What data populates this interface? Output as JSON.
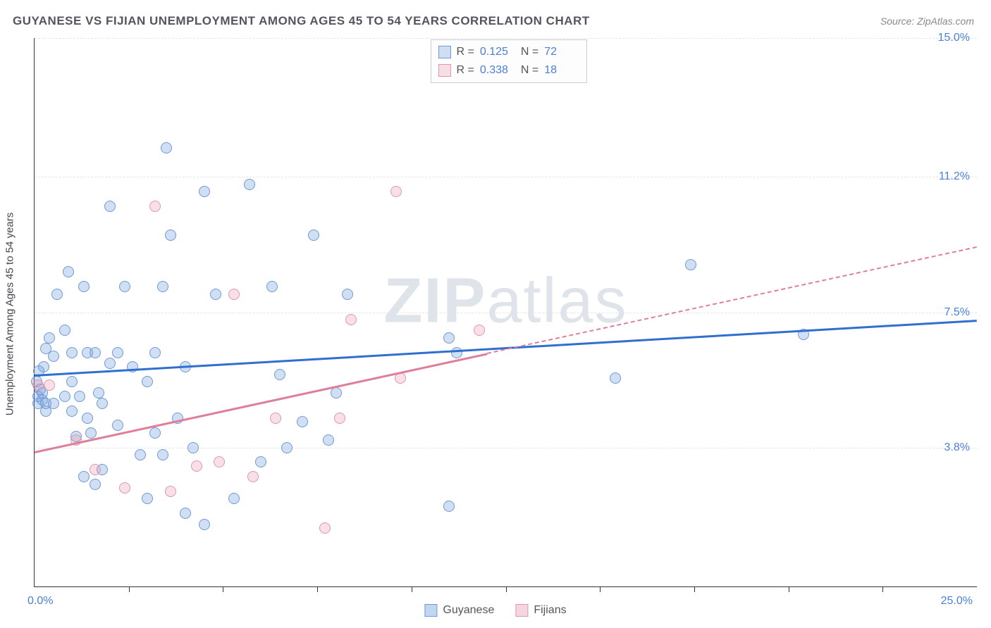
{
  "title": "GUYANESE VS FIJIAN UNEMPLOYMENT AMONG AGES 45 TO 54 YEARS CORRELATION CHART",
  "source_label": "Source: ZipAtlas.com",
  "yaxis_title": "Unemployment Among Ages 45 to 54 years",
  "watermark_bold": "ZIP",
  "watermark_rest": "atlas",
  "chart": {
    "type": "scatter",
    "background_color": "#ffffff",
    "grid_color": "#e6e6ea",
    "axis_color": "#333333",
    "label_color": "#4a7fd8",
    "title_color": "#555560",
    "title_fontsize": 17,
    "label_fontsize": 16,
    "yaxis_fontsize": 15,
    "xlim": [
      0,
      25
    ],
    "ylim": [
      0,
      15
    ],
    "x_min_label": "0.0%",
    "x_max_label": "25.0%",
    "y_gridlines": [
      3.8,
      7.5,
      11.2,
      15.0
    ],
    "y_grid_labels": [
      "3.8%",
      "7.5%",
      "11.2%",
      "15.0%"
    ],
    "x_ticks": [
      2.5,
      5,
      7.5,
      10,
      12.5,
      15,
      17.5,
      20,
      22.5
    ],
    "marker_size": 16,
    "line_width": 2.5
  },
  "series": [
    {
      "name": "Guyanese",
      "fill": "rgba(121,163,220,0.35)",
      "stroke": "#6e9ad6",
      "line_color": "#2f6fd0",
      "R": "0.125",
      "N": "72",
      "trend": {
        "x1": 0,
        "y1": 5.8,
        "x2": 25,
        "y2": 7.3,
        "solid_until_x": 25
      },
      "points": [
        [
          0.1,
          5.2
        ],
        [
          0.1,
          5.0
        ],
        [
          0.15,
          5.4
        ],
        [
          0.2,
          5.1
        ],
        [
          0.2,
          5.3
        ],
        [
          0.25,
          6.0
        ],
        [
          0.3,
          6.5
        ],
        [
          0.3,
          5.0
        ],
        [
          0.05,
          5.6
        ],
        [
          0.12,
          5.9
        ],
        [
          0.3,
          4.8
        ],
        [
          0.4,
          6.8
        ],
        [
          0.5,
          6.3
        ],
        [
          0.5,
          5.0
        ],
        [
          0.6,
          8.0
        ],
        [
          0.8,
          7.0
        ],
        [
          0.8,
          5.2
        ],
        [
          0.9,
          8.6
        ],
        [
          1.0,
          6.4
        ],
        [
          1.0,
          5.6
        ],
        [
          1.0,
          4.8
        ],
        [
          1.1,
          4.1
        ],
        [
          1.2,
          5.2
        ],
        [
          1.3,
          8.2
        ],
        [
          1.3,
          3.0
        ],
        [
          1.4,
          6.4
        ],
        [
          1.4,
          4.6
        ],
        [
          1.5,
          4.2
        ],
        [
          1.6,
          6.4
        ],
        [
          1.6,
          2.8
        ],
        [
          1.7,
          5.3
        ],
        [
          1.8,
          3.2
        ],
        [
          1.8,
          5.0
        ],
        [
          2.0,
          10.4
        ],
        [
          2.0,
          6.1
        ],
        [
          2.2,
          6.4
        ],
        [
          2.2,
          4.4
        ],
        [
          2.4,
          8.2
        ],
        [
          2.6,
          6.0
        ],
        [
          2.8,
          3.6
        ],
        [
          3.0,
          5.6
        ],
        [
          3.0,
          2.4
        ],
        [
          3.2,
          6.4
        ],
        [
          3.2,
          4.2
        ],
        [
          3.4,
          8.2
        ],
        [
          3.4,
          3.6
        ],
        [
          3.5,
          12.0
        ],
        [
          3.6,
          9.6
        ],
        [
          3.8,
          4.6
        ],
        [
          4.0,
          2.0
        ],
        [
          4.0,
          6.0
        ],
        [
          4.2,
          3.8
        ],
        [
          4.5,
          10.8
        ],
        [
          4.8,
          8.0
        ],
        [
          4.5,
          1.7
        ],
        [
          5.3,
          2.4
        ],
        [
          5.7,
          11.0
        ],
        [
          6.0,
          3.4
        ],
        [
          6.3,
          8.2
        ],
        [
          6.5,
          5.8
        ],
        [
          6.7,
          3.8
        ],
        [
          7.1,
          4.5
        ],
        [
          7.4,
          9.6
        ],
        [
          8.0,
          5.3
        ],
        [
          8.3,
          8.0
        ],
        [
          11.0,
          6.8
        ],
        [
          11.0,
          2.2
        ],
        [
          11.2,
          6.4
        ],
        [
          15.4,
          5.7
        ],
        [
          17.4,
          8.8
        ],
        [
          20.4,
          6.9
        ],
        [
          7.8,
          4.0
        ]
      ]
    },
    {
      "name": "Fijians",
      "fill": "rgba(231,153,172,0.30)",
      "stroke": "#de98ab",
      "line_color": "#df7f9a",
      "R": "0.338",
      "N": "18",
      "trend": {
        "x1": 0,
        "y1": 3.7,
        "x2": 25,
        "y2": 9.3,
        "solid_until_x": 12
      },
      "points": [
        [
          0.1,
          5.5
        ],
        [
          0.4,
          5.5
        ],
        [
          1.1,
          4.0
        ],
        [
          1.6,
          3.2
        ],
        [
          2.4,
          2.7
        ],
        [
          3.2,
          10.4
        ],
        [
          3.6,
          2.6
        ],
        [
          4.3,
          3.3
        ],
        [
          4.9,
          3.4
        ],
        [
          5.3,
          8.0
        ],
        [
          5.8,
          3.0
        ],
        [
          6.4,
          4.6
        ],
        [
          7.7,
          1.6
        ],
        [
          8.1,
          4.6
        ],
        [
          8.4,
          7.3
        ],
        [
          9.6,
          10.8
        ],
        [
          9.7,
          5.7
        ],
        [
          11.8,
          7.0
        ]
      ]
    }
  ],
  "bottom_legend": [
    {
      "label": "Guyanese",
      "fill": "rgba(121,163,220,0.45)",
      "stroke": "#6e9ad6"
    },
    {
      "label": "Fijians",
      "fill": "rgba(231,153,172,0.40)",
      "stroke": "#de98ab"
    }
  ]
}
